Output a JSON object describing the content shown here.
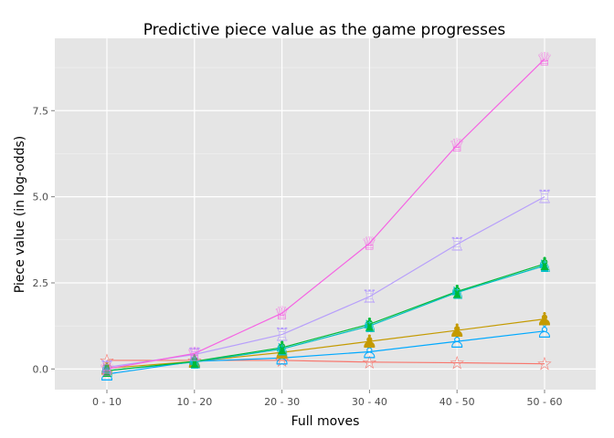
{
  "chart_data": {
    "type": "line",
    "title": "Predictive piece value as the game progresses",
    "xlabel": "Full moves",
    "ylabel": "Piece value (in log-odds)",
    "categories": [
      "0 - 10",
      "10 - 20",
      "20 - 30",
      "30 - 40",
      "40 - 50",
      "50 - 60"
    ],
    "y_ticks": [
      0.0,
      2.5,
      5.0,
      7.5
    ],
    "y_tick_labels": [
      "0.0",
      "2.5",
      "5.0",
      "7.5"
    ],
    "ylim": [
      -0.6,
      9.6
    ],
    "grid": true,
    "legend": "none",
    "series": [
      {
        "piece": "queen",
        "color": "#f564e3",
        "glyph": "♕",
        "values": [
          0.0,
          0.45,
          1.62,
          3.65,
          6.5,
          9.0
        ]
      },
      {
        "piece": "rook",
        "color": "#b79ffb",
        "glyph": "♖",
        "values": [
          0.05,
          0.42,
          1.0,
          2.1,
          3.62,
          5.0
        ]
      },
      {
        "piece": "bishop",
        "color": "#00ba38",
        "glyph": "♝",
        "values": [
          -0.05,
          0.22,
          0.62,
          1.3,
          2.25,
          3.05
        ]
      },
      {
        "piece": "knight",
        "color": "#00bfc4",
        "glyph": "♞",
        "values": [
          -0.05,
          0.2,
          0.58,
          1.25,
          2.22,
          3.0
        ]
      },
      {
        "piece": "pawn",
        "color": "#c49a00",
        "glyph": "♟",
        "values": [
          0.02,
          0.22,
          0.48,
          0.8,
          1.12,
          1.45
        ]
      },
      {
        "piece": "pawn-outline",
        "color": "#00a9ff",
        "glyph": "♙",
        "values": [
          -0.15,
          0.22,
          0.32,
          0.5,
          0.8,
          1.1
        ]
      },
      {
        "piece": "king",
        "color": "#f8766d",
        "glyph": "☆",
        "values": [
          0.25,
          0.25,
          0.25,
          0.2,
          0.18,
          0.15
        ]
      }
    ]
  }
}
